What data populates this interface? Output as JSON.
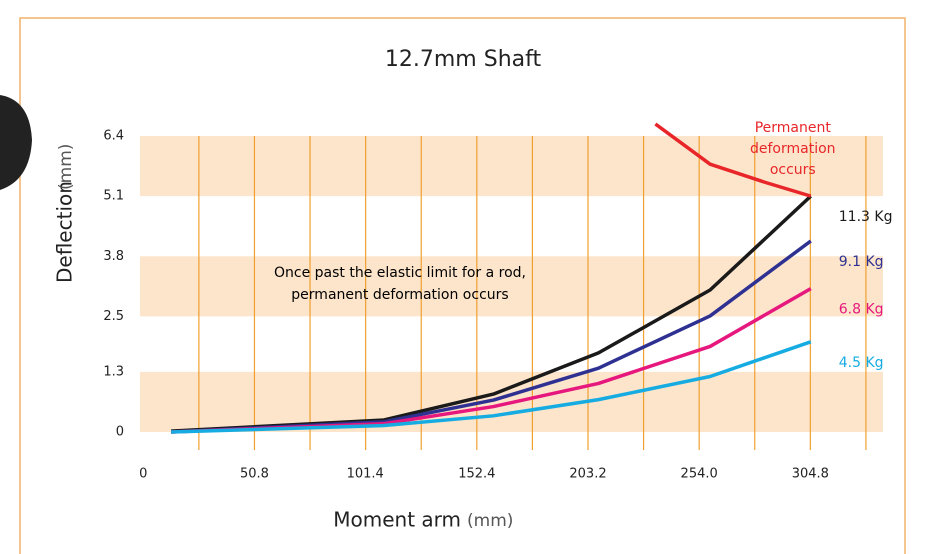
{
  "chart_data": {
    "type": "line",
    "title": "12.7mm Shaft",
    "y_label": "Deflection",
    "y_unit": "(mm)",
    "x_label": "Moment arm",
    "x_unit": "(mm)",
    "annotation": "Once past the elastic limit for a rod, permanent deformation occurs",
    "xlim": [
      -1.5,
      338
    ],
    "ylim": [
      0,
      6.4
    ],
    "xticks": [
      0,
      50.8,
      101.4,
      152.4,
      203.2,
      {
        "value": 254,
        "label": "254.0"
      },
      304.8
    ],
    "yticks": [
      0,
      1.3,
      2.5,
      3.8,
      5.1,
      6.4
    ],
    "xgrid": [
      25.4,
      50.8,
      76.2,
      101.6,
      127,
      152.4,
      177.8,
      203.2,
      228.6,
      254,
      279.4,
      304.8,
      330.2
    ],
    "series": [
      {
        "name": "11.3 Kg",
        "color": "#1a1a1a",
        "x": [
          12.7,
          110,
          160,
          208,
          259,
          305
        ],
        "values": [
          0.02,
          0.26,
          0.82,
          1.71,
          3.07,
          5.1
        ]
      },
      {
        "name": "9.1 Kg",
        "color": "#2e3192",
        "x": [
          12.7,
          110,
          160,
          208,
          259,
          305
        ],
        "values": [
          0,
          0.22,
          0.69,
          1.38,
          2.51,
          4.13
        ]
      },
      {
        "name": "6.8 Kg",
        "color": "#e6187e",
        "x": [
          12.7,
          110,
          160,
          208,
          259,
          305
        ],
        "values": [
          0,
          0.18,
          0.55,
          1.05,
          1.85,
          3.1
        ]
      },
      {
        "name": "4.5 Kg",
        "color": "#16ace2",
        "x": [
          12.7,
          110,
          160,
          208,
          259,
          305
        ],
        "values": [
          0,
          0.14,
          0.35,
          0.7,
          1.2,
          1.95
        ]
      },
      {
        "name": "Permanent deformation occurs",
        "color": "#e8262a",
        "x": [
          234,
          259,
          284,
          305
        ],
        "values": [
          6.66,
          5.79,
          5.4,
          5.1
        ]
      }
    ]
  }
}
